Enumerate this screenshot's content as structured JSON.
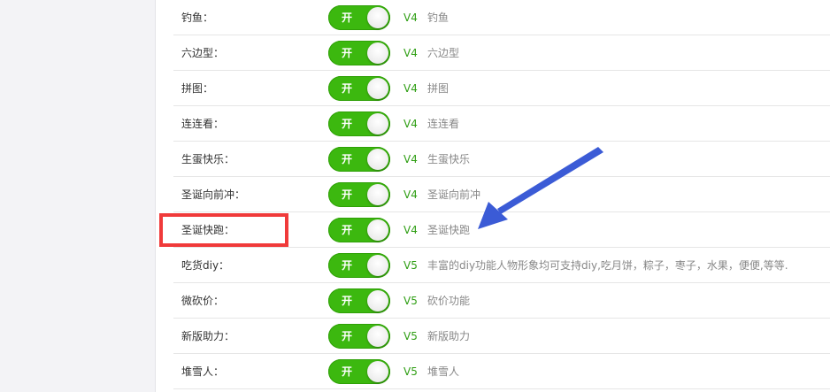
{
  "colors": {
    "toggle_on": "#3cb80f",
    "version": "#2e9e13",
    "highlight": "#f03a3a",
    "arrow": "#3b5bd6"
  },
  "rows": [
    {
      "label": "钓鱼：",
      "toggle": "开",
      "enabled": true,
      "version": "V4",
      "desc": "钓鱼"
    },
    {
      "label": "六边型：",
      "toggle": "开",
      "enabled": true,
      "version": "V4",
      "desc": "六边型"
    },
    {
      "label": "拼图：",
      "toggle": "开",
      "enabled": true,
      "version": "V4",
      "desc": "拼图"
    },
    {
      "label": "连连看：",
      "toggle": "开",
      "enabled": true,
      "version": "V4",
      "desc": "连连看"
    },
    {
      "label": "生蛋快乐：",
      "toggle": "开",
      "enabled": true,
      "version": "V4",
      "desc": "生蛋快乐"
    },
    {
      "label": "圣诞向前冲：",
      "toggle": "开",
      "enabled": true,
      "version": "V4",
      "desc": "圣诞向前冲"
    },
    {
      "label": "圣诞快跑：",
      "toggle": "开",
      "enabled": true,
      "version": "V4",
      "desc": "圣诞快跑"
    },
    {
      "label": "吃货diy：",
      "toggle": "开",
      "enabled": true,
      "version": "V5",
      "desc": "丰富的diy功能人物形象均可支持diy,吃月饼，粽子，枣子，水果，便便,等等."
    },
    {
      "label": "微砍价：",
      "toggle": "开",
      "enabled": true,
      "version": "V5",
      "desc": "砍价功能"
    },
    {
      "label": "新版助力：",
      "toggle": "开",
      "enabled": true,
      "version": "V5",
      "desc": "新版助力"
    },
    {
      "label": "堆雪人：",
      "toggle": "开",
      "enabled": true,
      "version": "V5",
      "desc": "堆雪人"
    }
  ]
}
